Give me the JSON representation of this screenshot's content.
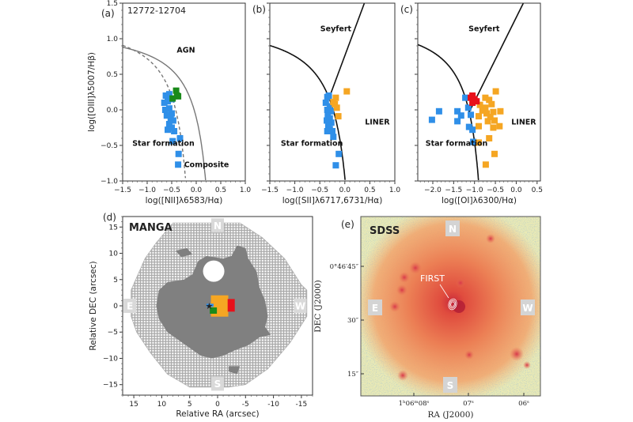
{
  "colors": {
    "star_forming": "#2f8fe8",
    "composite": "#1a8a1a",
    "liner": "#f5a623",
    "seyfert": "#e8101a",
    "grid_cell": "#a8a8a8",
    "masked": "#808080",
    "curve_kewley": "#777777",
    "curve_bpt": "#111111"
  },
  "chart_data": [
    {
      "type": "scatter",
      "panel_label": "(a)",
      "title": "12772-12704",
      "xlabel": "log([NII]λ6583/Hα)",
      "ylabel": "log([OIII]λ5007/Hβ)",
      "xlim": [
        -1.5,
        1.0
      ],
      "ylim": [
        -1.0,
        1.5
      ],
      "xticks": [
        -1.5,
        -1.0,
        -0.5,
        0.0,
        0.5,
        1.0
      ],
      "yticks": [
        -1.0,
        -0.5,
        0.0,
        0.5,
        1.0,
        1.5
      ],
      "xtick_labels": [
        "−1.5",
        "−1.0",
        "−0.5",
        "0.0",
        "0.5",
        "1.0"
      ],
      "ytick_labels": [
        "−1.0",
        "−0.5",
        "0.0",
        "0.5",
        "1.0",
        "1.5"
      ],
      "curves": [
        {
          "style": "solid",
          "formula": "0.61/(x-0.47)+1.19",
          "xmax": 0.47
        },
        {
          "style": "dashed",
          "formula": "0.61/(x-0.05)+1.3",
          "xmax": 0.05
        }
      ],
      "annotations": [
        {
          "text": "AGN",
          "x": -0.21,
          "y": 0.84
        },
        {
          "text": "Star formation",
          "x": -0.67,
          "y": -0.47
        },
        {
          "text": "Composite",
          "x": 0.21,
          "y": -0.77
        }
      ],
      "series": [
        {
          "class": "star_forming",
          "points": [
            [
              -0.62,
              0.2
            ],
            [
              -0.55,
              0.22
            ],
            [
              -0.65,
              0.1
            ],
            [
              -0.58,
              0.12
            ],
            [
              -0.5,
              0.15
            ],
            [
              -0.63,
              0.0
            ],
            [
              -0.55,
              0.02
            ],
            [
              -0.5,
              -0.05
            ],
            [
              -0.6,
              -0.08
            ],
            [
              -0.52,
              -0.12
            ],
            [
              -0.47,
              -0.15
            ],
            [
              -0.55,
              -0.2
            ],
            [
              -0.5,
              -0.25
            ],
            [
              -0.58,
              -0.28
            ],
            [
              -0.45,
              -0.3
            ],
            [
              -0.48,
              -0.44
            ],
            [
              -0.33,
              -0.4
            ],
            [
              -0.36,
              -0.62
            ],
            [
              -0.37,
              -0.77
            ]
          ]
        },
        {
          "class": "composite",
          "points": [
            [
              -0.41,
              0.27
            ],
            [
              -0.37,
              0.19
            ],
            [
              -0.48,
              0.16
            ],
            [
              -0.39,
              0.2
            ]
          ]
        }
      ]
    },
    {
      "type": "scatter",
      "panel_label": "(b)",
      "xlabel": "log([SII]λ6717,6731/Hα)",
      "xlim": [
        -1.5,
        1.0
      ],
      "ylim": [
        -1.0,
        1.5
      ],
      "xticks": [
        -1.5,
        -1.0,
        -0.5,
        0.0,
        0.5,
        1.0
      ],
      "yticks": [
        -1.0,
        -0.5,
        0.0,
        0.5,
        1.0,
        1.5
      ],
      "xtick_labels": [
        "−1.5",
        "−1.0",
        "−0.5",
        "0.0",
        "0.5",
        "1.0"
      ],
      "curves": [
        {
          "style": "solid",
          "formula": "0.72/(x-0.32)+1.30",
          "xmax": 0.32
        },
        {
          "style": "solid",
          "formula": "1.89x+0.76",
          "line": [
            1.89,
            0.76
          ]
        }
      ],
      "annotations": [
        {
          "text": "Seyfert",
          "x": -0.18,
          "y": 1.14
        },
        {
          "text": "LINER",
          "x": 0.65,
          "y": -0.17
        },
        {
          "text": "Star formation",
          "x": -0.66,
          "y": -0.47
        }
      ],
      "series": [
        {
          "class": "star_forming",
          "points": [
            [
              -0.35,
              0.18
            ],
            [
              -0.32,
              0.2
            ],
            [
              -0.38,
              0.1
            ],
            [
              -0.3,
              0.05
            ],
            [
              -0.35,
              0.0
            ],
            [
              -0.28,
              -0.02
            ],
            [
              -0.34,
              -0.08
            ],
            [
              -0.3,
              -0.12
            ],
            [
              -0.36,
              -0.15
            ],
            [
              -0.27,
              -0.18
            ],
            [
              -0.33,
              -0.22
            ],
            [
              -0.3,
              -0.27
            ],
            [
              -0.35,
              -0.3
            ],
            [
              -0.25,
              -0.3
            ],
            [
              -0.23,
              -0.38
            ],
            [
              -0.12,
              -0.62
            ],
            [
              -0.18,
              -0.78
            ]
          ]
        },
        {
          "class": "liner",
          "points": [
            [
              0.04,
              0.26
            ],
            [
              -0.18,
              0.17
            ],
            [
              -0.2,
              0.08
            ],
            [
              -0.16,
              0.03
            ],
            [
              -0.13,
              -0.09
            ],
            [
              -0.23,
              0.11
            ]
          ]
        }
      ]
    },
    {
      "type": "scatter",
      "panel_label": "(c)",
      "xlabel": "log([OI]λ6300/Hα)",
      "xlim": [
        -2.36,
        0.58
      ],
      "ylim": [
        -1.0,
        1.5
      ],
      "xticks": [
        -2.0,
        -1.5,
        -1.0,
        -0.5,
        0.0,
        0.5
      ],
      "yticks": [
        -1.0,
        -0.5,
        0.0,
        0.5,
        1.0,
        1.5
      ],
      "xtick_labels": [
        "−2.0",
        "−1.5",
        "−1.0",
        "−0.5",
        "0.0",
        "0.5"
      ],
      "curves": [
        {
          "style": "solid",
          "formula": "0.73/(x+0.59)+1.33",
          "xmax": -0.59
        },
        {
          "style": "solid",
          "formula": "1.18x+1.30",
          "line": [
            1.18,
            1.3
          ]
        }
      ],
      "annotations": [
        {
          "text": "Seyfert",
          "x": -0.77,
          "y": 1.14
        },
        {
          "text": "LINER",
          "x": 0.18,
          "y": -0.17
        },
        {
          "text": "Star formation",
          "x": -1.43,
          "y": -0.47
        }
      ],
      "series": [
        {
          "class": "star_forming",
          "points": [
            [
              -2.02,
              -0.14
            ],
            [
              -1.85,
              -0.02
            ],
            [
              -1.41,
              -0.02
            ],
            [
              -1.32,
              -0.08
            ],
            [
              -1.41,
              -0.16
            ],
            [
              -1.22,
              0.17
            ],
            [
              -1.15,
              0.03
            ],
            [
              -1.09,
              -0.07
            ],
            [
              -1.13,
              -0.24
            ],
            [
              -1.05,
              -0.28
            ],
            [
              -1.03,
              -0.45
            ]
          ]
        },
        {
          "class": "liner",
          "points": [
            [
              -0.49,
              0.26
            ],
            [
              -0.74,
              0.17
            ],
            [
              -0.65,
              0.14
            ],
            [
              -0.87,
              0.07
            ],
            [
              -0.74,
              0.03
            ],
            [
              -0.59,
              0.08
            ],
            [
              -0.71,
              -0.05
            ],
            [
              -0.55,
              -0.03
            ],
            [
              -0.38,
              -0.02
            ],
            [
              -0.9,
              -0.09
            ],
            [
              -0.62,
              -0.1
            ],
            [
              -0.68,
              -0.16
            ],
            [
              -0.52,
              -0.15
            ],
            [
              -0.4,
              -0.23
            ],
            [
              -0.55,
              -0.25
            ],
            [
              -0.9,
              -0.23
            ],
            [
              -0.65,
              -0.4
            ],
            [
              -0.9,
              -0.46
            ],
            [
              -0.52,
              -0.62
            ],
            [
              -0.73,
              -0.77
            ],
            [
              -0.81,
              -0.01
            ]
          ]
        },
        {
          "class": "seyfert",
          "points": [
            [
              -1.09,
              0.17
            ],
            [
              -1.0,
              0.15
            ],
            [
              -1.05,
              0.1
            ],
            [
              -0.95,
              0.12
            ],
            [
              -1.05,
              0.2
            ]
          ]
        }
      ]
    },
    {
      "type": "heatmap",
      "panel_label": "(d)",
      "title": "MANGA",
      "xlabel": "Relative RA (arcsec)",
      "ylabel": "Relative DEC (arcsec)",
      "xlim": [
        17,
        -17
      ],
      "ylim": [
        -17,
        17
      ],
      "xticks": [
        15,
        10,
        5,
        0,
        -5,
        -10,
        -15
      ],
      "yticks": [
        -15,
        -10,
        -5,
        0,
        5,
        10,
        15
      ],
      "xtick_labels": [
        "15",
        "10",
        "5",
        "0",
        "-5",
        "-10",
        "-15"
      ],
      "ytick_labels": [
        "−15",
        "−10",
        "−5",
        "0",
        "5",
        "10",
        "15"
      ],
      "directions": {
        "north": "N",
        "south": "S",
        "east": "E",
        "west": "W"
      },
      "nucleus_marker": "star",
      "nucleus": [
        1.5,
        0
      ]
    },
    {
      "type": "image",
      "panel_label": "(e)",
      "title": "SDSS",
      "xlabel": "RA (J2000)",
      "ylabel": "DEC (J2000)",
      "xtick_labels": [
        "1ʰ06ᵐ08ˢ",
        "07ˢ",
        "06ˢ"
      ],
      "ytick_labels": [
        "0°46′45″",
        "30″",
        "15″"
      ],
      "contour_label": "FIRST",
      "directions": {
        "north": "N",
        "south": "S",
        "east": "E",
        "west": "W"
      }
    }
  ]
}
